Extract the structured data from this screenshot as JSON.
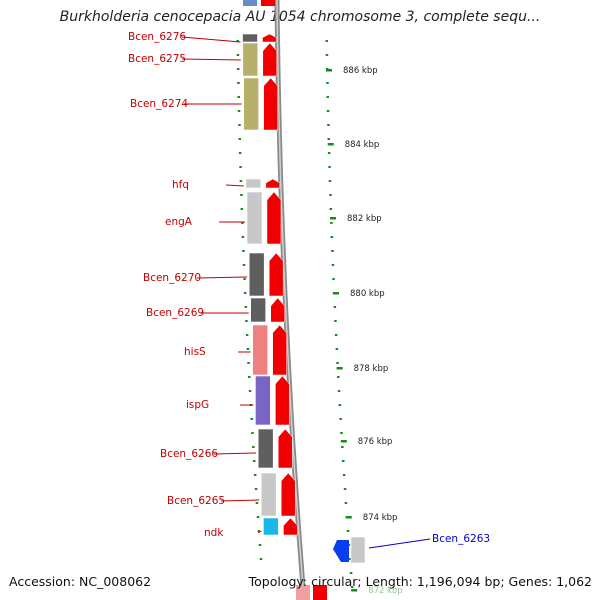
{
  "title": "Burkholderia cenocepacia AU 1054 chromosome 3, complete sequ...",
  "footer": {
    "accession": "Accession: NC_008062",
    "summary": "Topology: circular; Length: 1,196,094 bp; Genes: 1,062"
  },
  "scale_labels": [
    "886 kbp",
    "884 kbp",
    "882 kbp",
    "880 kbp",
    "878 kbp",
    "876 kbp",
    "874 kbp",
    "872 kbp"
  ],
  "genes": [
    {
      "name": "Bcen_6276",
      "color": "#5f5f5f"
    },
    {
      "name": "Bcen_6275",
      "color": "#b7b06a"
    },
    {
      "name": "Bcen_6274",
      "color": "#b7b06a"
    },
    {
      "name": "hfq",
      "color": "#c8c8c8"
    },
    {
      "name": "engA",
      "color": "#c8c8c8"
    },
    {
      "name": "Bcen_6270",
      "color": "#5f5f5f"
    },
    {
      "name": "Bcen_6269",
      "color": "#5f5f5f"
    },
    {
      "name": "hisS",
      "color": "#ef8080"
    },
    {
      "name": "ispG",
      "color": "#7a64c8"
    },
    {
      "name": "Bcen_6266",
      "color": "#5f5f5f"
    },
    {
      "name": "Bcen_6265",
      "color": "#c8c8c8"
    },
    {
      "name": "ndk",
      "color": "#19b8e8"
    },
    {
      "name": "Bcen_6263",
      "color": "#0a3cf0"
    }
  ],
  "colors": {
    "forward_strand": "#f00000",
    "reverse_strand": "#0a3cf0",
    "gene_label": "#c00000",
    "highlight_label": "#0000cc",
    "tick": "#1a8a1a",
    "backbone": "#8a8a8a"
  }
}
